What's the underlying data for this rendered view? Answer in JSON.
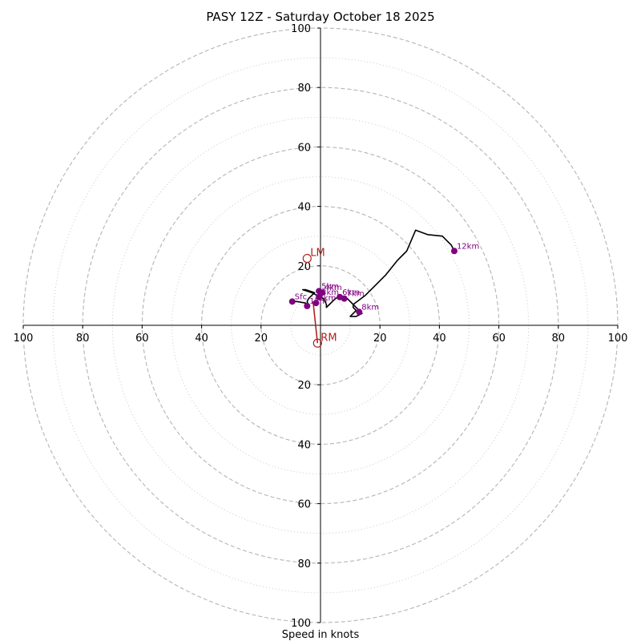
{
  "chart_data": {
    "type": "hodograph",
    "title": "PASY 12Z - Saturday October 18 2025",
    "xlabel": "Speed in knots",
    "units": "knots",
    "xlim": [
      -100,
      100
    ],
    "ylim": [
      -100,
      100
    ],
    "rings_major": [
      20,
      40,
      60,
      80,
      100
    ],
    "rings_minor": [
      10,
      30,
      50,
      70,
      90
    ],
    "x_ticks": [
      {
        "value": -100,
        "label": "100"
      },
      {
        "value": -80,
        "label": "80"
      },
      {
        "value": -60,
        "label": "60"
      },
      {
        "value": -40,
        "label": "40"
      },
      {
        "value": -20,
        "label": "20"
      },
      {
        "value": 20,
        "label": "20"
      },
      {
        "value": 40,
        "label": "40"
      },
      {
        "value": 60,
        "label": "60"
      },
      {
        "value": 80,
        "label": "80"
      },
      {
        "value": 100,
        "label": "100"
      }
    ],
    "y_ticks": [
      {
        "value": 100,
        "label": "100"
      },
      {
        "value": 80,
        "label": "80"
      },
      {
        "value": 60,
        "label": "60"
      },
      {
        "value": 40,
        "label": "40"
      },
      {
        "value": 20,
        "label": "20"
      },
      {
        "value": -20,
        "label": "20"
      },
      {
        "value": -40,
        "label": "40"
      },
      {
        "value": -60,
        "label": "60"
      },
      {
        "value": -80,
        "label": "80"
      },
      {
        "value": -100,
        "label": "100"
      }
    ],
    "trace": {
      "color": "#000000",
      "points": [
        [
          -9.5,
          8
        ],
        [
          -8,
          8
        ],
        [
          -5,
          7.5
        ],
        [
          -4,
          6.5
        ],
        [
          -4.5,
          8
        ],
        [
          -4,
          9
        ],
        [
          -3,
          10
        ],
        [
          -2,
          11
        ],
        [
          -5,
          12
        ],
        [
          -6,
          12
        ],
        [
          -3,
          11
        ],
        [
          -1,
          10
        ],
        [
          1,
          9
        ],
        [
          2,
          7
        ],
        [
          2,
          6
        ],
        [
          3,
          7
        ],
        [
          4,
          8
        ],
        [
          5,
          9
        ],
        [
          6,
          9.5
        ],
        [
          7,
          10
        ],
        [
          8,
          9.5
        ],
        [
          9,
          9
        ],
        [
          10,
          8
        ],
        [
          11,
          7
        ],
        [
          11,
          6
        ],
        [
          12,
          5
        ],
        [
          11,
          4
        ],
        [
          10,
          3
        ],
        [
          12,
          3
        ],
        [
          14,
          4
        ],
        [
          13,
          5
        ],
        [
          11,
          7
        ],
        [
          15,
          10
        ],
        [
          18,
          13
        ],
        [
          22,
          17
        ],
        [
          26,
          22
        ],
        [
          28,
          24
        ],
        [
          29,
          25
        ],
        [
          32,
          32
        ],
        [
          36,
          30.5
        ],
        [
          41,
          30
        ],
        [
          42,
          29
        ],
        [
          44,
          27
        ],
        [
          45,
          25
        ]
      ]
    },
    "height_markers": {
      "color": "#800080",
      "points": [
        {
          "label": "Sfc",
          "x": -9.5,
          "y": 8
        },
        {
          "label": "1km",
          "x": -4.5,
          "y": 6.5
        },
        {
          "label": "2km",
          "x": -1.5,
          "y": 7.5
        },
        {
          "label": "3km",
          "x": -0.5,
          "y": 9.5
        },
        {
          "label": "4km",
          "x": 0.5,
          "y": 11
        },
        {
          "label": "5km",
          "x": -0.5,
          "y": 11.5
        },
        {
          "label": "6km",
          "x": 6.5,
          "y": 9.5
        },
        {
          "label": "7km",
          "x": 8,
          "y": 9
        },
        {
          "label": "8km",
          "x": 13,
          "y": 4.5
        },
        {
          "label": "12km",
          "x": 45,
          "y": 25
        }
      ]
    },
    "storm_motion": {
      "color": "#b22222",
      "vector_from": [
        -2.5,
        8
      ],
      "left_mover": {
        "label": "LM",
        "x": -4.5,
        "y": 22.5
      },
      "right_mover": {
        "label": "RM",
        "x": -1,
        "y": -6
      }
    }
  }
}
